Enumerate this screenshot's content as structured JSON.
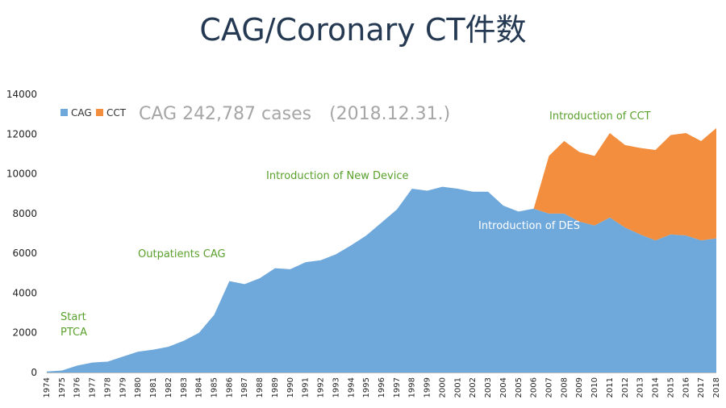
{
  "title": "CAG/Coronary CT件数",
  "chart_data": {
    "type": "area",
    "stacked": true,
    "ylim": [
      0,
      14000
    ],
    "yticks": [
      0,
      2000,
      4000,
      6000,
      8000,
      10000,
      12000,
      14000
    ],
    "x": [
      1974,
      1975,
      1976,
      1977,
      1978,
      1979,
      1980,
      1981,
      1982,
      1983,
      1984,
      1985,
      1986,
      1987,
      1988,
      1989,
      1990,
      1991,
      1992,
      1993,
      1994,
      1995,
      1996,
      1997,
      1998,
      1999,
      2000,
      2001,
      2002,
      2003,
      2004,
      2005,
      2006,
      2007,
      2008,
      2009,
      2010,
      2011,
      2012,
      2013,
      2014,
      2015,
      2016,
      2017,
      2018
    ],
    "series": [
      {
        "name": "CAG",
        "color": "#6fa9dc",
        "values": [
          50,
          100,
          350,
          500,
          550,
          800,
          1050,
          1150,
          1300,
          1600,
          2000,
          2900,
          4600,
          4450,
          4750,
          5250,
          5200,
          5550,
          5650,
          5950,
          6400,
          6900,
          7550,
          8200,
          9250,
          9150,
          9350,
          9250,
          9100,
          9100,
          8400,
          8100,
          8250,
          8000,
          8000,
          7600,
          7400,
          7800,
          7300,
          6950,
          6650,
          6950,
          6900,
          6650,
          6750
        ]
      },
      {
        "name": "CCT",
        "color": "#f28e3d",
        "values": [
          0,
          0,
          0,
          0,
          0,
          0,
          0,
          0,
          0,
          0,
          0,
          0,
          0,
          0,
          0,
          0,
          0,
          0,
          0,
          0,
          0,
          0,
          0,
          0,
          0,
          0,
          0,
          0,
          0,
          0,
          0,
          0,
          0,
          2900,
          3650,
          3500,
          3500,
          4250,
          4150,
          4350,
          4550,
          5000,
          5150,
          5000,
          5550
        ]
      }
    ],
    "legend": {
      "position": "top-left",
      "entries": [
        {
          "label": "CAG",
          "color": "#6fa9dc"
        },
        {
          "label": "CCT",
          "color": "#f28e3d"
        }
      ]
    },
    "summary_text": "CAG 242,787 cases　(2018.12.31.)",
    "annotations": [
      {
        "text": "Start",
        "color": "#5aa02c"
      },
      {
        "text": "PTCA",
        "color": "#5aa02c"
      },
      {
        "text": "Outpatients CAG",
        "color": "#5aa02c"
      },
      {
        "text": "Introduction of New Device",
        "color": "#5aa02c"
      },
      {
        "text": "Introduction of CCT",
        "color": "#5aa02c"
      },
      {
        "text": "Introduction of DES",
        "color": "#ffffff"
      }
    ]
  }
}
